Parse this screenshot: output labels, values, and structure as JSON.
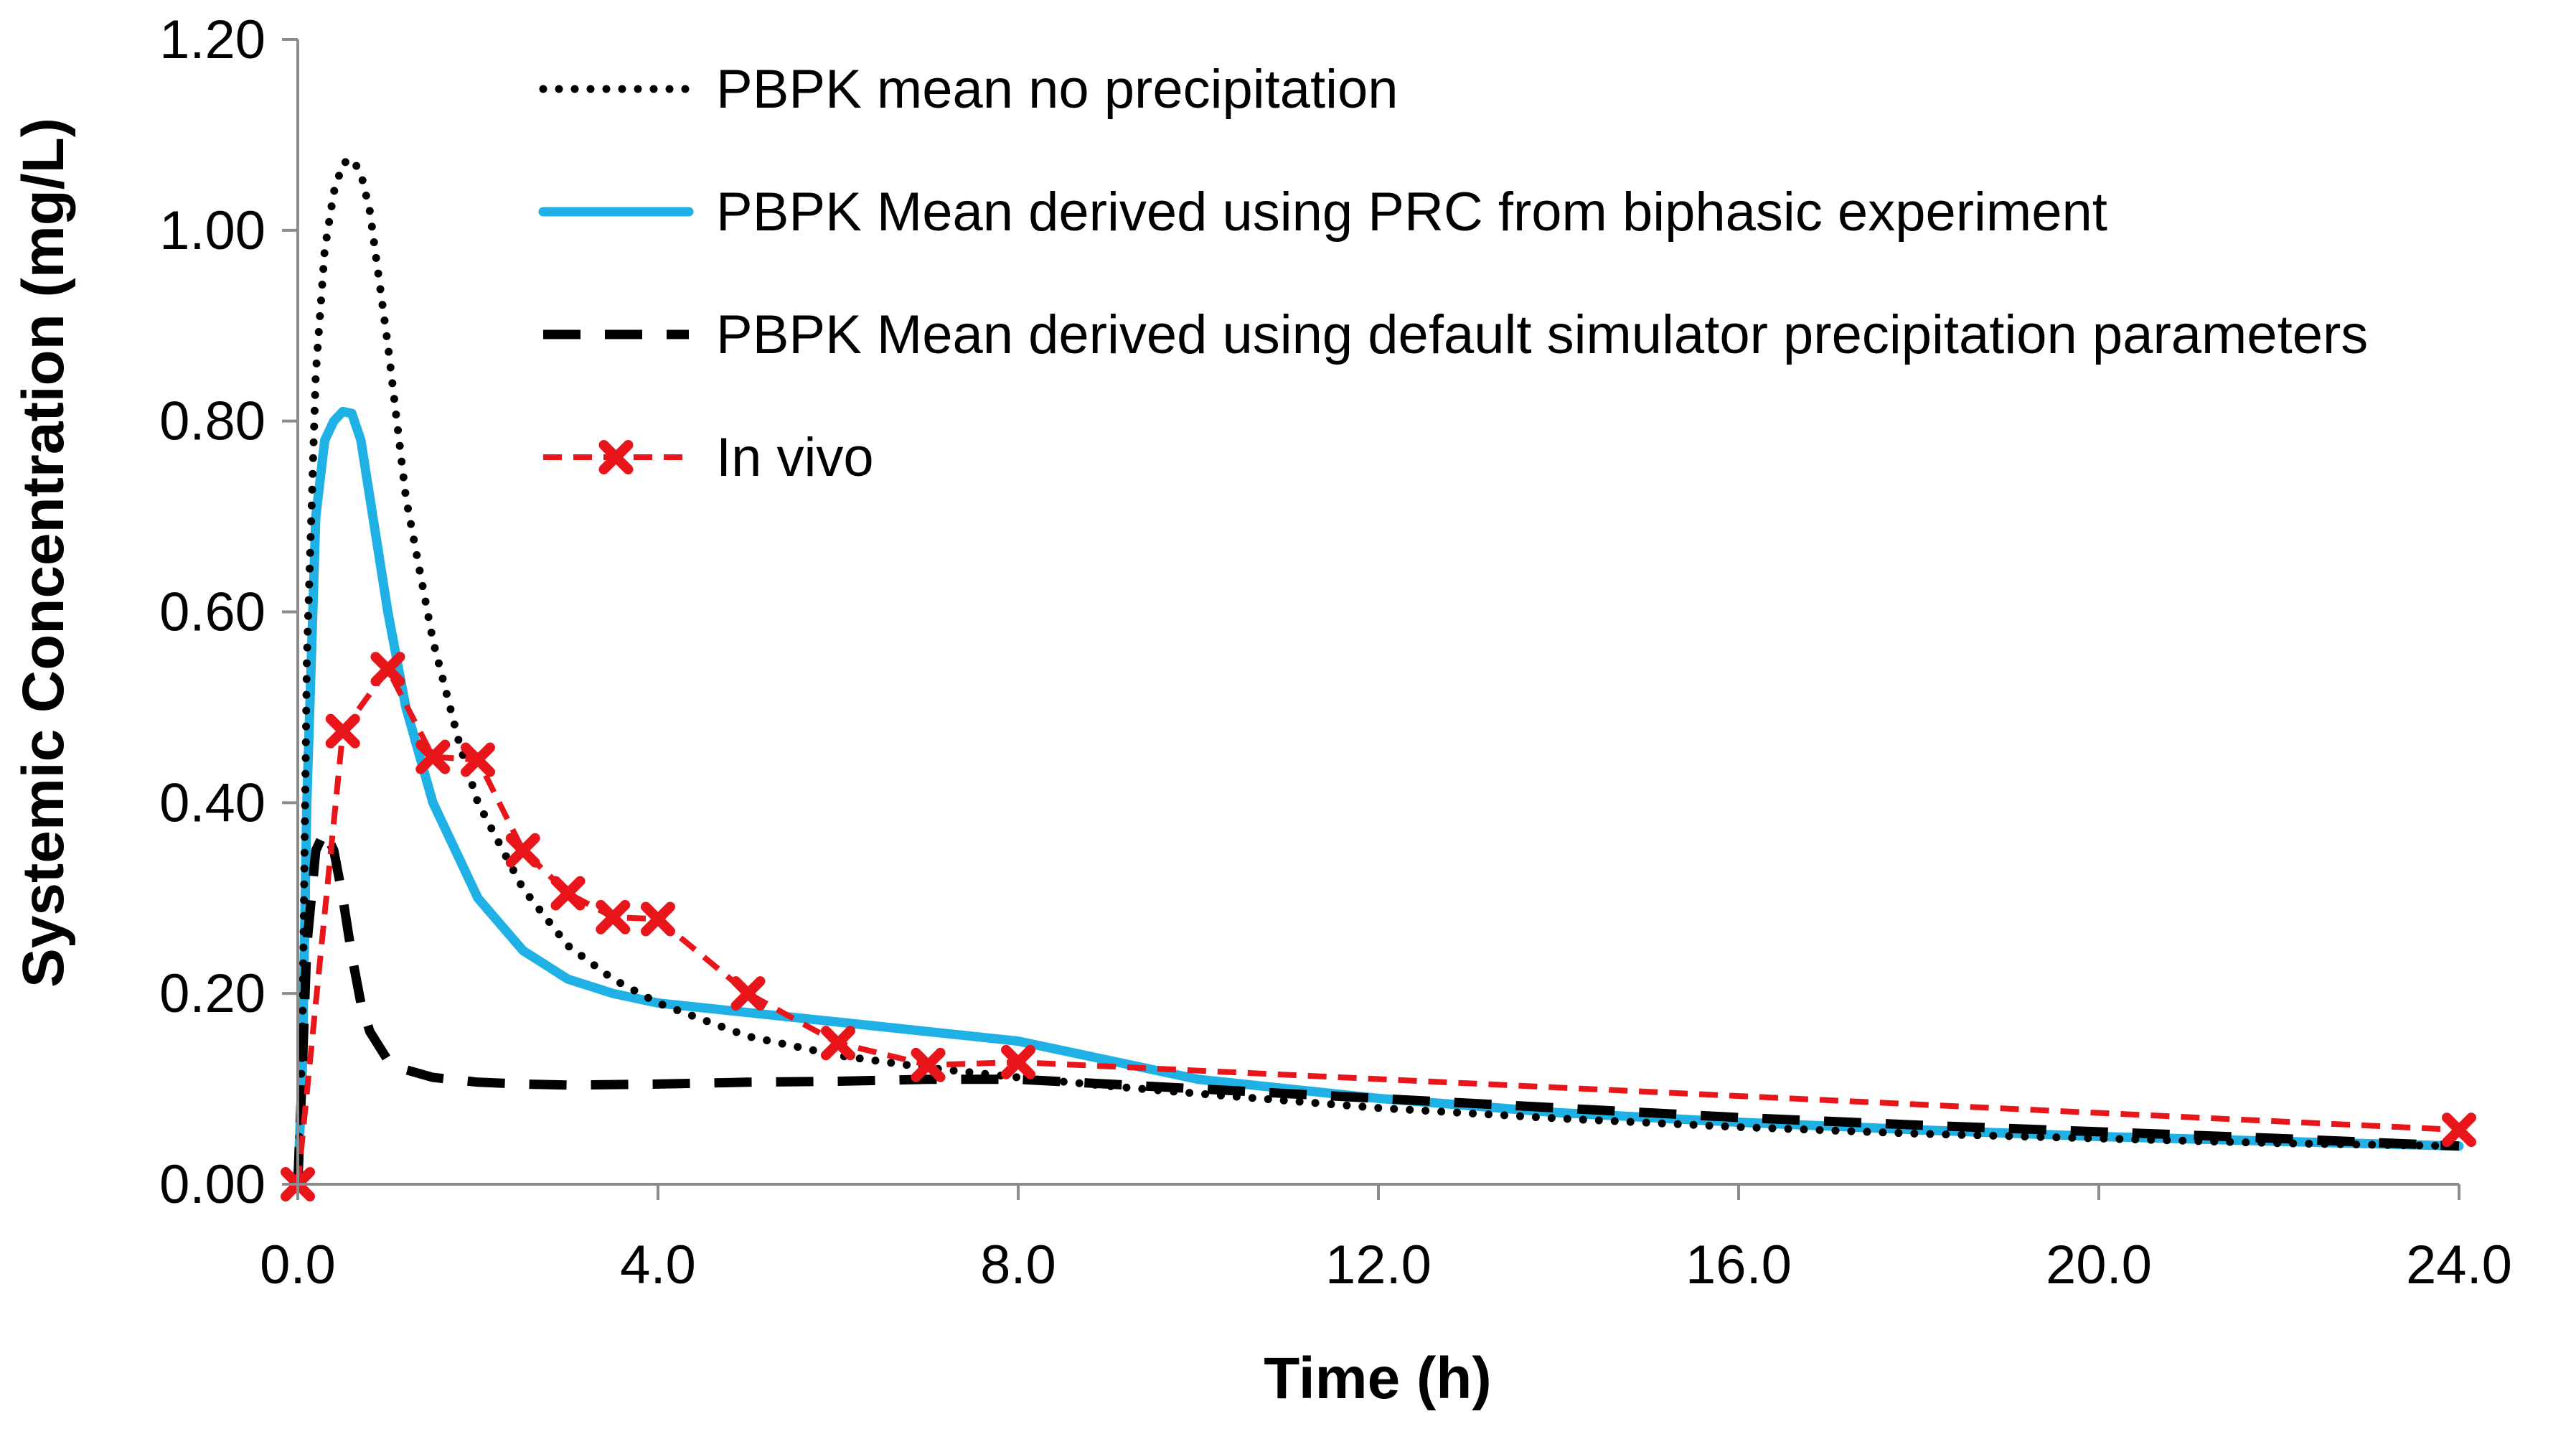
{
  "chart_data": {
    "type": "line",
    "title": "",
    "xlabel": "Time (h)",
    "ylabel": "Systemic Concentration (mg/L)",
    "xlim": [
      0,
      24
    ],
    "ylim": [
      0,
      1.2
    ],
    "xticks": [
      0,
      4,
      8,
      12,
      16,
      20,
      24
    ],
    "xtick_labels": [
      "0.0",
      "4.0",
      "8.0",
      "12.0",
      "16.0",
      "20.0",
      "24.0"
    ],
    "yticks": [
      0,
      0.2,
      0.4,
      0.6,
      0.8,
      1.0,
      1.2
    ],
    "ytick_labels": [
      "0.00",
      "0.20",
      "0.40",
      "0.60",
      "0.80",
      "1.00",
      "1.20"
    ],
    "grid": false,
    "legend_position": "top-right",
    "series": [
      {
        "name": "PBPK mean no precipitation",
        "color": "#000000",
        "style": "dotted",
        "x": [
          0,
          0.05,
          0.1,
          0.2,
          0.3,
          0.4,
          0.5,
          0.6,
          0.7,
          0.8,
          1.0,
          1.2,
          1.5,
          1.8,
          2.0,
          2.5,
          3.0,
          3.5,
          4.0,
          5.0,
          6.0,
          7.0,
          8.0,
          9.0,
          10.0,
          12.0,
          14.0,
          16.0,
          18.0,
          20.0,
          22.0,
          24.0
        ],
        "y": [
          0,
          0.15,
          0.55,
          0.85,
          0.98,
          1.04,
          1.07,
          1.075,
          1.06,
          1.02,
          0.88,
          0.72,
          0.57,
          0.46,
          0.4,
          0.31,
          0.25,
          0.215,
          0.19,
          0.155,
          0.135,
          0.122,
          0.112,
          0.103,
          0.095,
          0.08,
          0.069,
          0.06,
          0.053,
          0.048,
          0.043,
          0.04
        ]
      },
      {
        "name": "PBPK Mean derived using PRC from biphasic experiment",
        "color": "#1fb1e6",
        "style": "solid",
        "x": [
          0,
          0.05,
          0.1,
          0.2,
          0.3,
          0.4,
          0.5,
          0.6,
          0.7,
          0.8,
          1.0,
          1.2,
          1.5,
          2.0,
          2.5,
          3.0,
          3.5,
          4.0,
          5.0,
          6.0,
          7.0,
          8.0,
          9.0,
          10.0,
          12.0,
          14.0,
          16.0,
          18.0,
          20.0,
          22.0,
          24.0
        ],
        "y": [
          0,
          0.12,
          0.4,
          0.7,
          0.78,
          0.8,
          0.81,
          0.808,
          0.78,
          0.72,
          0.6,
          0.5,
          0.4,
          0.3,
          0.245,
          0.215,
          0.2,
          0.19,
          0.18,
          0.17,
          0.16,
          0.15,
          0.13,
          0.11,
          0.09,
          0.075,
          0.065,
          0.057,
          0.05,
          0.045,
          0.04
        ]
      },
      {
        "name": "PBPK Mean derived using default simulator precipitation parameters",
        "color": "#000000",
        "style": "dashed",
        "x": [
          0,
          0.05,
          0.1,
          0.2,
          0.3,
          0.4,
          0.5,
          0.6,
          0.7,
          0.8,
          1.0,
          1.2,
          1.5,
          2.0,
          2.5,
          3.0,
          4.0,
          5.0,
          6.0,
          7.0,
          8.0,
          9.0,
          10.0,
          12.0,
          14.0,
          16.0,
          18.0,
          20.0,
          22.0,
          24.0
        ],
        "y": [
          0,
          0.12,
          0.25,
          0.35,
          0.37,
          0.35,
          0.3,
          0.24,
          0.19,
          0.16,
          0.13,
          0.12,
          0.112,
          0.107,
          0.105,
          0.104,
          0.105,
          0.107,
          0.108,
          0.11,
          0.11,
          0.105,
          0.1,
          0.09,
          0.08,
          0.07,
          0.062,
          0.055,
          0.048,
          0.04
        ]
      },
      {
        "name": "In vivo",
        "color": "#e8161b",
        "style": "dashed-markers",
        "x": [
          0,
          0.5,
          1.0,
          1.5,
          2.0,
          2.5,
          3.0,
          3.5,
          4.0,
          5.0,
          6.0,
          7.0,
          8.0,
          24.0
        ],
        "y": [
          0,
          0.475,
          0.54,
          0.448,
          0.445,
          0.35,
          0.305,
          0.28,
          0.278,
          0.2,
          0.148,
          0.125,
          0.128,
          0.057
        ]
      }
    ]
  }
}
